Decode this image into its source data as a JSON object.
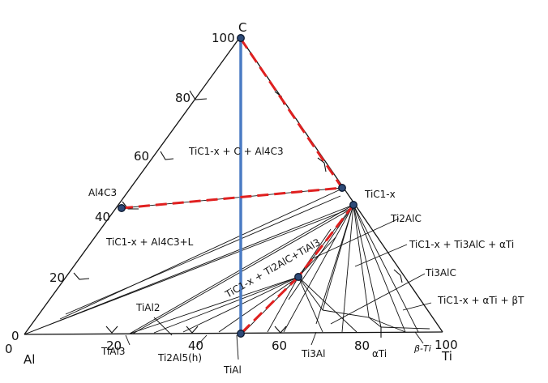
{
  "diagram": {
    "axis_labels": {
      "corner_c": "C",
      "corner_al": "Al",
      "corner_ti": "Ti",
      "c_100": "100",
      "c_80": "80",
      "c_60": "60",
      "c_40": "40",
      "c_20": "20",
      "al_0": "0",
      "ti_0": "0",
      "ti_20": "20",
      "ti_40": "40",
      "ti_60": "60",
      "ti_80": "80",
      "ti_100": "100"
    },
    "phase_labels": {
      "al4c3": "Al4C3",
      "tic": "TiC1-x",
      "ti2alc": "Ti2AlC",
      "ti3alc": "Ti3AlC",
      "tial3": "TiAl3",
      "tial2": "TiAl2",
      "ti2al5": "Ti2Al5(h)",
      "tial": "TiAl",
      "ti3al": "Ti3Al",
      "alpha_ti": "αTi",
      "beta_ti": "β-Ti"
    },
    "region_labels": {
      "tic_c_al4c3": "TiC1-x + C + Al4C3",
      "tic_al4c3_l": "TiC1-x + Al4C3+L",
      "tic_ti2alc_tial3": "TiC1-x + Ti2AlC+TiAl3",
      "tic_ti3alc_alpha": "TiC1-x + Ti3AlC + αTi",
      "tic_alpha_beta": "TiC1-x + αTi + βT"
    },
    "colors": {
      "ink": "#111111",
      "blue_line": "#4a7bc4",
      "red_dash": "#e02020",
      "marker_fill": "#2e4a78",
      "marker_stroke": "#0d1a30"
    }
  }
}
